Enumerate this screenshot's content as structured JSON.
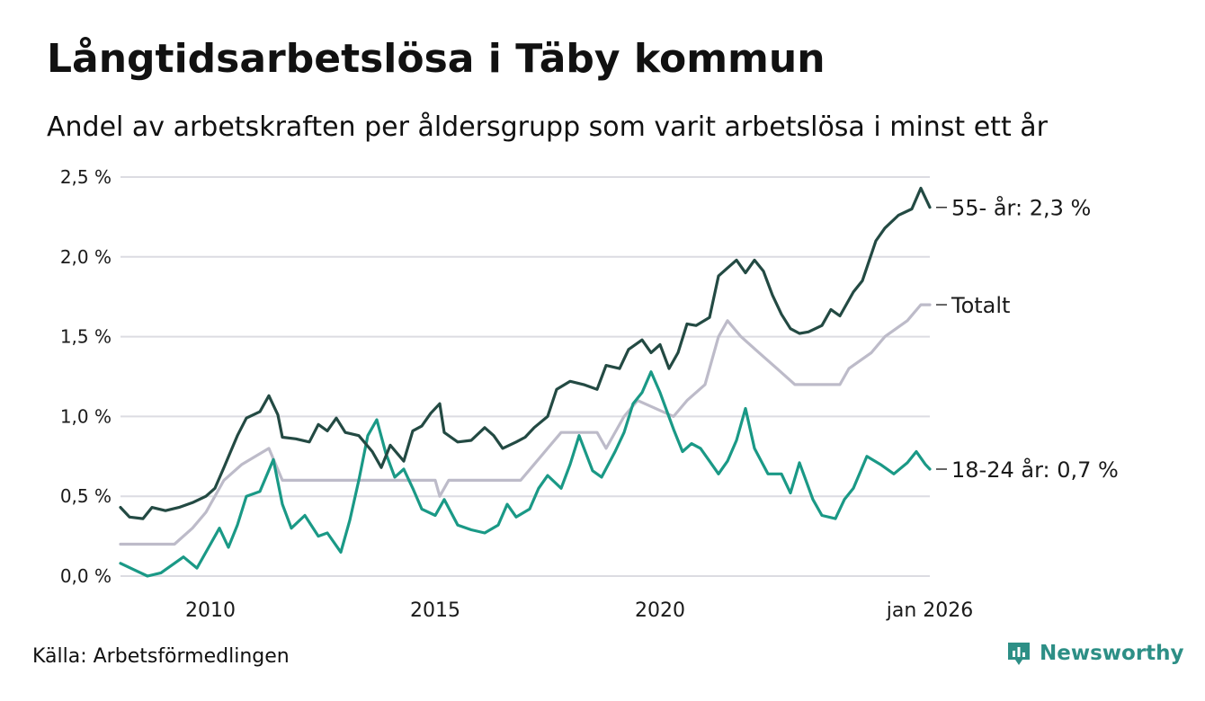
{
  "header": {
    "title": "Långtidsarbetslösa i Täby kommun",
    "subtitle": "Andel av arbetskraften per åldersgrupp som varit arbetslösa i minst ett år"
  },
  "footer": {
    "source": "Källa: Arbetsförmedlingen",
    "brand": "Newsworthy"
  },
  "colors": {
    "age55": "#234a43",
    "total": "#bdbbc9",
    "age1824": "#1a9986",
    "grid": "#dcdce2",
    "brand": "#2d8f86"
  },
  "chart_data": {
    "type": "line",
    "title": "Långtidsarbetslösa i Täby kommun",
    "xlabel": "",
    "ylabel": "",
    "ylim": [
      0,
      2.5
    ],
    "xlim": [
      2008.0,
      2026.0
    ],
    "yticks": [
      {
        "value": 0.0,
        "label": "0,0 %"
      },
      {
        "value": 0.5,
        "label": "0,5 %"
      },
      {
        "value": 1.0,
        "label": "1,0 %"
      },
      {
        "value": 1.5,
        "label": "1,5 %"
      },
      {
        "value": 2.0,
        "label": "2,0 %"
      },
      {
        "value": 2.5,
        "label": "2,5 %"
      }
    ],
    "xticks": [
      {
        "value": 2010,
        "label": "2010"
      },
      {
        "value": 2015,
        "label": "2015"
      },
      {
        "value": 2020,
        "label": "2020"
      },
      {
        "value": 2026,
        "label": "jan 2026"
      }
    ],
    "series": [
      {
        "name": "55- år",
        "label": "55- år: 2,3 %",
        "points": [
          [
            2008.0,
            0.43
          ],
          [
            2008.2,
            0.37
          ],
          [
            2008.5,
            0.36
          ],
          [
            2008.7,
            0.43
          ],
          [
            2009.0,
            0.41
          ],
          [
            2009.3,
            0.43
          ],
          [
            2009.6,
            0.46
          ],
          [
            2009.9,
            0.5
          ],
          [
            2010.1,
            0.55
          ],
          [
            2010.3,
            0.68
          ],
          [
            2010.6,
            0.88
          ],
          [
            2010.8,
            0.99
          ],
          [
            2011.1,
            1.03
          ],
          [
            2011.3,
            1.13
          ],
          [
            2011.5,
            1.01
          ],
          [
            2011.6,
            0.87
          ],
          [
            2011.9,
            0.86
          ],
          [
            2012.2,
            0.84
          ],
          [
            2012.4,
            0.95
          ],
          [
            2012.6,
            0.91
          ],
          [
            2012.8,
            0.99
          ],
          [
            2013.0,
            0.9
          ],
          [
            2013.3,
            0.88
          ],
          [
            2013.6,
            0.78
          ],
          [
            2013.8,
            0.68
          ],
          [
            2014.0,
            0.82
          ],
          [
            2014.3,
            0.72
          ],
          [
            2014.5,
            0.91
          ],
          [
            2014.7,
            0.94
          ],
          [
            2014.9,
            1.02
          ],
          [
            2015.1,
            1.08
          ],
          [
            2015.2,
            0.9
          ],
          [
            2015.5,
            0.84
          ],
          [
            2015.8,
            0.85
          ],
          [
            2016.1,
            0.93
          ],
          [
            2016.3,
            0.88
          ],
          [
            2016.5,
            0.8
          ],
          [
            2016.8,
            0.84
          ],
          [
            2017.0,
            0.87
          ],
          [
            2017.2,
            0.93
          ],
          [
            2017.5,
            1.0
          ],
          [
            2017.7,
            1.17
          ],
          [
            2018.0,
            1.22
          ],
          [
            2018.3,
            1.2
          ],
          [
            2018.6,
            1.17
          ],
          [
            2018.8,
            1.32
          ],
          [
            2019.1,
            1.3
          ],
          [
            2019.3,
            1.42
          ],
          [
            2019.6,
            1.48
          ],
          [
            2019.8,
            1.4
          ],
          [
            2020.0,
            1.45
          ],
          [
            2020.2,
            1.3
          ],
          [
            2020.4,
            1.4
          ],
          [
            2020.6,
            1.58
          ],
          [
            2020.8,
            1.57
          ],
          [
            2021.1,
            1.62
          ],
          [
            2021.3,
            1.88
          ],
          [
            2021.5,
            1.93
          ],
          [
            2021.7,
            1.98
          ],
          [
            2021.9,
            1.9
          ],
          [
            2022.1,
            1.98
          ],
          [
            2022.3,
            1.91
          ],
          [
            2022.5,
            1.76
          ],
          [
            2022.7,
            1.64
          ],
          [
            2022.9,
            1.55
          ],
          [
            2023.1,
            1.52
          ],
          [
            2023.3,
            1.53
          ],
          [
            2023.6,
            1.57
          ],
          [
            2023.8,
            1.67
          ],
          [
            2024.0,
            1.63
          ],
          [
            2024.3,
            1.78
          ],
          [
            2024.5,
            1.85
          ],
          [
            2024.8,
            2.1
          ],
          [
            2025.0,
            2.18
          ],
          [
            2025.3,
            2.26
          ],
          [
            2025.6,
            2.3
          ],
          [
            2025.8,
            2.43
          ],
          [
            2026.0,
            2.31
          ]
        ]
      },
      {
        "name": "Totalt",
        "label": "Totalt",
        "points": [
          [
            2008.0,
            0.2
          ],
          [
            2009.2,
            0.2
          ],
          [
            2009.6,
            0.3
          ],
          [
            2009.9,
            0.4
          ],
          [
            2010.3,
            0.6
          ],
          [
            2010.7,
            0.7
          ],
          [
            2011.3,
            0.8
          ],
          [
            2011.6,
            0.6
          ],
          [
            2013.0,
            0.6
          ],
          [
            2015.0,
            0.6
          ],
          [
            2015.1,
            0.5
          ],
          [
            2015.3,
            0.6
          ],
          [
            2016.9,
            0.6
          ],
          [
            2017.2,
            0.7
          ],
          [
            2017.5,
            0.8
          ],
          [
            2017.8,
            0.9
          ],
          [
            2018.6,
            0.9
          ],
          [
            2018.8,
            0.8
          ],
          [
            2019.2,
            1.0
          ],
          [
            2019.5,
            1.1
          ],
          [
            2020.3,
            1.0
          ],
          [
            2020.6,
            1.1
          ],
          [
            2021.0,
            1.2
          ],
          [
            2021.3,
            1.5
          ],
          [
            2021.5,
            1.6
          ],
          [
            2021.8,
            1.5
          ],
          [
            2022.2,
            1.4
          ],
          [
            2022.6,
            1.3
          ],
          [
            2023.0,
            1.2
          ],
          [
            2024.0,
            1.2
          ],
          [
            2024.2,
            1.3
          ],
          [
            2024.7,
            1.4
          ],
          [
            2025.0,
            1.5
          ],
          [
            2025.5,
            1.6
          ],
          [
            2025.8,
            1.7
          ],
          [
            2026.0,
            1.7
          ]
        ]
      },
      {
        "name": "18-24 år",
        "label": "18-24 år: 0,7 %",
        "points": [
          [
            2008.0,
            0.08
          ],
          [
            2008.3,
            0.04
          ],
          [
            2008.6,
            0.0
          ],
          [
            2008.9,
            0.02
          ],
          [
            2009.2,
            0.08
          ],
          [
            2009.4,
            0.12
          ],
          [
            2009.7,
            0.05
          ],
          [
            2010.0,
            0.2
          ],
          [
            2010.2,
            0.3
          ],
          [
            2010.4,
            0.18
          ],
          [
            2010.6,
            0.32
          ],
          [
            2010.8,
            0.5
          ],
          [
            2011.1,
            0.53
          ],
          [
            2011.4,
            0.73
          ],
          [
            2011.6,
            0.45
          ],
          [
            2011.8,
            0.3
          ],
          [
            2012.1,
            0.38
          ],
          [
            2012.4,
            0.25
          ],
          [
            2012.6,
            0.27
          ],
          [
            2012.9,
            0.15
          ],
          [
            2013.1,
            0.35
          ],
          [
            2013.3,
            0.6
          ],
          [
            2013.5,
            0.88
          ],
          [
            2013.7,
            0.98
          ],
          [
            2013.9,
            0.77
          ],
          [
            2014.1,
            0.62
          ],
          [
            2014.3,
            0.67
          ],
          [
            2014.5,
            0.55
          ],
          [
            2014.7,
            0.42
          ],
          [
            2015.0,
            0.38
          ],
          [
            2015.2,
            0.48
          ],
          [
            2015.5,
            0.32
          ],
          [
            2015.8,
            0.29
          ],
          [
            2016.1,
            0.27
          ],
          [
            2016.4,
            0.32
          ],
          [
            2016.6,
            0.45
          ],
          [
            2016.8,
            0.37
          ],
          [
            2017.1,
            0.42
          ],
          [
            2017.3,
            0.55
          ],
          [
            2017.5,
            0.63
          ],
          [
            2017.8,
            0.55
          ],
          [
            2018.0,
            0.7
          ],
          [
            2018.2,
            0.88
          ],
          [
            2018.5,
            0.66
          ],
          [
            2018.7,
            0.62
          ],
          [
            2019.0,
            0.78
          ],
          [
            2019.2,
            0.9
          ],
          [
            2019.4,
            1.08
          ],
          [
            2019.6,
            1.15
          ],
          [
            2019.8,
            1.28
          ],
          [
            2020.0,
            1.15
          ],
          [
            2020.3,
            0.92
          ],
          [
            2020.5,
            0.78
          ],
          [
            2020.7,
            0.83
          ],
          [
            2020.9,
            0.8
          ],
          [
            2021.1,
            0.72
          ],
          [
            2021.3,
            0.64
          ],
          [
            2021.5,
            0.72
          ],
          [
            2021.7,
            0.85
          ],
          [
            2021.9,
            1.05
          ],
          [
            2022.1,
            0.8
          ],
          [
            2022.4,
            0.64
          ],
          [
            2022.7,
            0.64
          ],
          [
            2022.9,
            0.52
          ],
          [
            2023.1,
            0.71
          ],
          [
            2023.4,
            0.48
          ],
          [
            2023.6,
            0.38
          ],
          [
            2023.9,
            0.36
          ],
          [
            2024.1,
            0.48
          ],
          [
            2024.3,
            0.55
          ],
          [
            2024.6,
            0.75
          ],
          [
            2024.9,
            0.7
          ],
          [
            2025.2,
            0.64
          ],
          [
            2025.5,
            0.71
          ],
          [
            2025.7,
            0.78
          ],
          [
            2025.9,
            0.7
          ],
          [
            2026.0,
            0.67
          ]
        ]
      }
    ]
  }
}
